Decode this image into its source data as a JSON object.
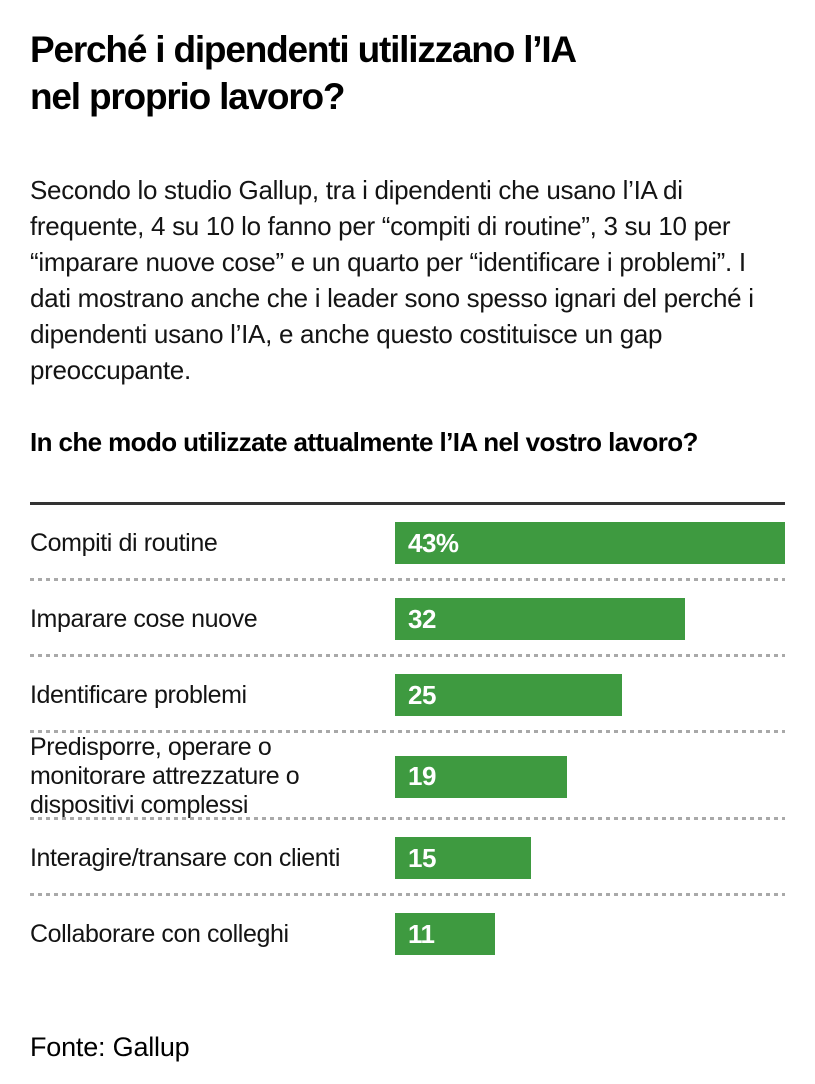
{
  "header": {
    "title": "Perché i dipendenti utilizzano l’IA\nnel proprio lavoro?"
  },
  "intro": {
    "text": "Secondo lo studio Gallup, tra i dipendenti che usano l’IA di frequente, 4 su 10 lo fanno per “compiti di routine”, 3 su 10 per “imparare nuove cose” e un quarto per “identificare i problemi”. I dati mostrano anche che i leader sono spesso ignari del perché i dipendenti usano l’IA, e anche questo costituisce un gap preoccupante."
  },
  "chart_data": {
    "type": "bar",
    "orientation": "horizontal",
    "title": "In che modo utilizzate attualmente l’IA nel vostro lavoro?",
    "categories": [
      "Compiti di routine",
      "Imparare cose nuove",
      "Identificare problemi",
      "Predisporre, operare o monitorare attrezzature o dispositivi complessi",
      "Interagire/transare con clienti",
      "Collaborare con colleghi"
    ],
    "values": [
      43,
      32,
      25,
      19,
      15,
      11
    ],
    "value_labels": [
      "43%",
      "32",
      "25",
      "19",
      "15",
      "11"
    ],
    "unit": "percent",
    "xlim": [
      0,
      43
    ],
    "bar_color": "#3e9a40",
    "grid": false,
    "legend": false
  },
  "footer": {
    "source": "Fonte: Gallup"
  },
  "colors": {
    "bar_green": "#3e9a40",
    "text": "#141414",
    "top_rule": "#333333",
    "separator": "#a9a9a9"
  }
}
